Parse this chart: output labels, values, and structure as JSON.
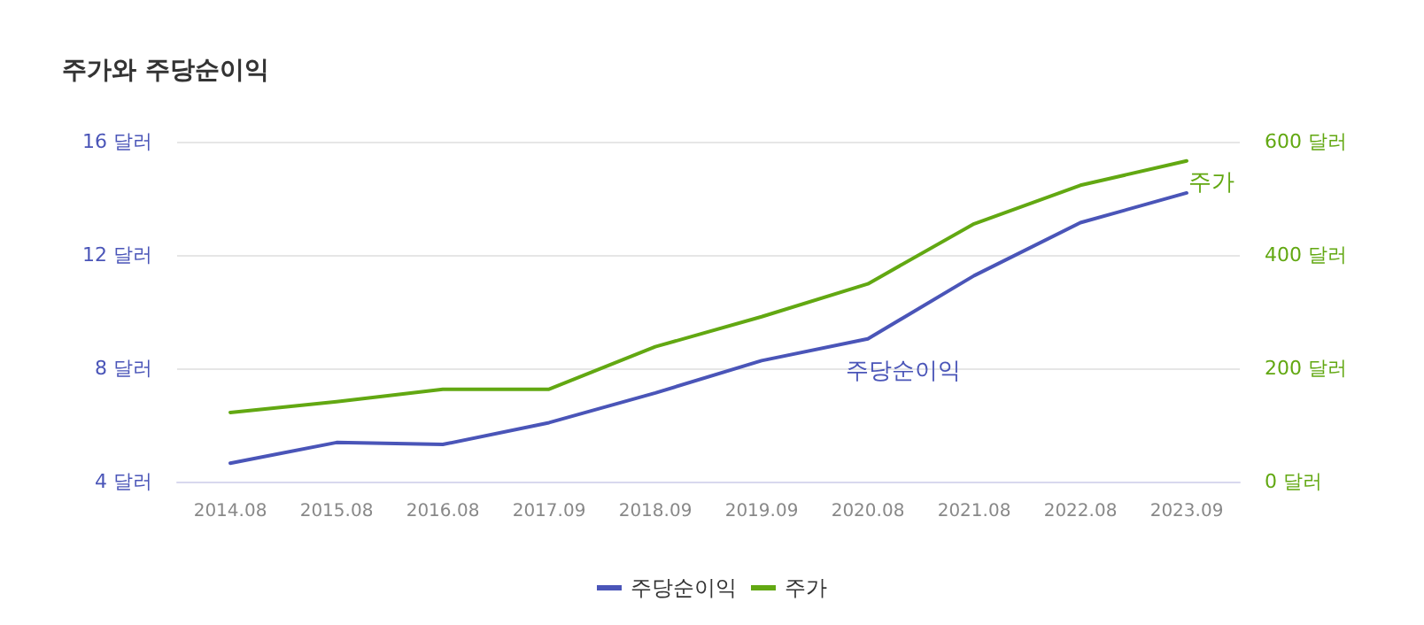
{
  "chart_data": {
    "type": "line",
    "title": "주가와 주당순이익",
    "categories": [
      "2014.08",
      "2015.08",
      "2016.08",
      "2017.09",
      "2018.09",
      "2019.09",
      "2020.08",
      "2021.08",
      "2022.08",
      "2023.09"
    ],
    "series": [
      {
        "name": "주당순이익",
        "color": "#4a55b8",
        "values": [
          4.65,
          5.38,
          5.31,
          6.08,
          7.13,
          8.27,
          9.04,
          11.27,
          13.14,
          14.19
        ]
      },
      {
        "name": "주가",
        "color": "#62a812",
        "axis": "y2",
        "values": [
          122,
          141,
          163,
          163,
          238,
          291,
          349,
          455,
          523,
          566
        ]
      }
    ],
    "ylim": [
      4,
      16
    ],
    "yticks": [
      {
        "value": 4,
        "label": "4 달러"
      },
      {
        "value": 8,
        "label": "8 달러"
      },
      {
        "value": 12,
        "label": "12 달러"
      },
      {
        "value": 16,
        "label": "16 달러"
      }
    ],
    "y2lim": [
      0,
      600
    ],
    "y2ticks": [
      {
        "value": 0,
        "label": "0 달러"
      },
      {
        "value": 200,
        "label": "200 달러"
      },
      {
        "value": 400,
        "label": "400 달러"
      },
      {
        "value": 600,
        "label": "600 달러"
      }
    ],
    "grid": "y",
    "legend": "bottom",
    "marker": "none",
    "line_style": "solid"
  }
}
